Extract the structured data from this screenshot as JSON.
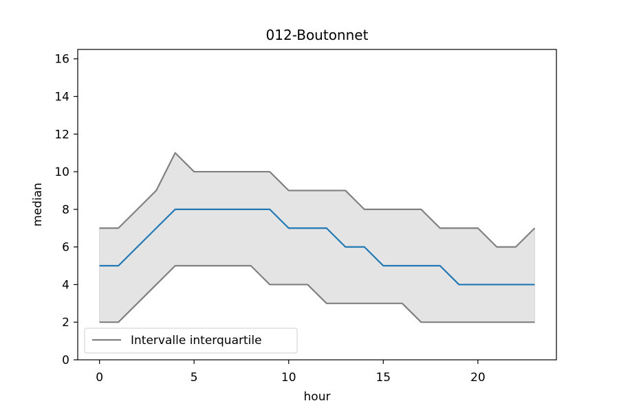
{
  "chart_data": {
    "type": "line",
    "title": "012-Boutonnet",
    "xlabel": "hour",
    "ylabel": "median",
    "xlim": [
      -1.15,
      24.15
    ],
    "ylim": [
      0,
      16.5
    ],
    "xticks": [
      0,
      5,
      10,
      15,
      20
    ],
    "yticks": [
      0,
      2,
      4,
      6,
      8,
      10,
      12,
      14,
      16
    ],
    "x": [
      0,
      1,
      2,
      3,
      4,
      5,
      6,
      7,
      8,
      9,
      10,
      11,
      12,
      13,
      14,
      15,
      16,
      17,
      18,
      19,
      20,
      21,
      22,
      23
    ],
    "series": [
      {
        "role": "median",
        "values": [
          5,
          5,
          6,
          7,
          8,
          8,
          8,
          8,
          8,
          8,
          7,
          7,
          7,
          6,
          6,
          5,
          5,
          5,
          5,
          4,
          4,
          4,
          4,
          4
        ],
        "color": "#1f77b4"
      },
      {
        "role": "q3",
        "values": [
          7,
          7,
          8,
          9,
          11,
          10,
          10,
          10,
          10,
          10,
          9,
          9,
          9,
          9,
          8,
          8,
          8,
          8,
          7,
          7,
          7,
          6,
          6,
          7
        ],
        "color": "#808080"
      },
      {
        "role": "q1",
        "values": [
          2,
          2,
          3,
          4,
          5,
          5,
          5,
          5,
          5,
          4,
          4,
          4,
          3,
          3,
          3,
          3,
          3,
          2,
          2,
          2,
          2,
          2,
          2,
          2
        ],
        "color": "#808080"
      }
    ],
    "band": {
      "between": [
        "q1",
        "q3"
      ],
      "color": "#e4e4e4"
    },
    "legend": {
      "position": "lower-left",
      "entries": [
        {
          "label": "Intervalle interquartile",
          "color": "#808080"
        }
      ]
    },
    "grid": false
  }
}
